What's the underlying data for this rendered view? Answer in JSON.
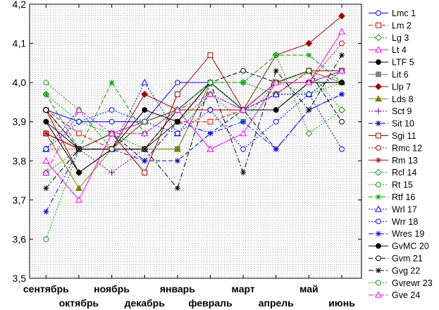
{
  "chart_data": {
    "type": "line",
    "categories": [
      "сентябрь",
      "октябрь",
      "ноябрь",
      "декабрь",
      "январь",
      "февраль",
      "март",
      "апрель",
      "май",
      "июнь"
    ],
    "ylim": [
      3.5,
      4.2
    ],
    "yticks": [
      "3,5",
      "3,6",
      "3,7",
      "3,8",
      "3,9",
      "4,0",
      "4,1",
      "4,2"
    ],
    "grid": true,
    "legend_position": "right",
    "series": [
      {
        "name": "Lmc 1",
        "color": "#0000ff",
        "dash": "solid",
        "marker": "circle-open",
        "values": [
          3.93,
          3.9,
          3.9,
          3.9,
          4.0,
          4.0,
          3.93,
          4.0,
          4.0,
          4.03
        ]
      },
      {
        "name": "Lm 2",
        "color": "#ff0000",
        "dash": "dash",
        "marker": "square-open",
        "values": [
          3.93,
          3.87,
          3.83,
          3.83,
          3.9,
          3.9,
          3.93,
          3.97,
          4.03,
          4.03
        ]
      },
      {
        "name": "Lg 3",
        "color": "#00a000",
        "dash": "dot",
        "marker": "diamond-open",
        "values": [
          3.77,
          3.83,
          3.87,
          3.9,
          3.93,
          4.0,
          4.0,
          3.97,
          3.97,
          4.0
        ]
      },
      {
        "name": "Lt 4",
        "color": "#ff00ff",
        "dash": "solid",
        "marker": "triangle-open",
        "values": [
          3.8,
          3.7,
          3.87,
          3.9,
          3.93,
          3.83,
          3.87,
          4.0,
          4.0,
          4.13
        ]
      },
      {
        "name": "LTF 5",
        "color": "#000000",
        "dash": "solid",
        "marker": "circle-filled",
        "values": [
          3.9,
          3.83,
          3.83,
          3.83,
          3.9,
          4.0,
          3.93,
          3.93,
          4.0,
          4.0
        ]
      },
      {
        "name": "Lit 6",
        "color": "#808080",
        "dash": "solid",
        "marker": "square-filled",
        "values": [
          3.93,
          3.83,
          3.83,
          3.83,
          3.83,
          4.0,
          3.93,
          4.0,
          4.0,
          4.03
        ]
      },
      {
        "name": "Llp 7",
        "color": "#a00000",
        "dash": "solid",
        "marker": "diamond-filled",
        "values": [
          3.93,
          3.77,
          3.83,
          3.97,
          3.93,
          3.93,
          3.93,
          4.07,
          4.1,
          4.17
        ]
      },
      {
        "name": "Lds 8",
        "color": "#808000",
        "dash": "solid",
        "marker": "triangle-filled",
        "values": [
          3.87,
          3.73,
          3.83,
          3.83,
          3.83,
          4.0,
          3.93,
          4.0,
          4.03,
          4.0
        ]
      },
      {
        "name": "Sct 9",
        "color": "#800080",
        "dash": "dot",
        "marker": "plus",
        "values": [
          3.87,
          3.83,
          3.77,
          3.83,
          3.93,
          4.0,
          3.93,
          3.97,
          4.03,
          4.03
        ]
      },
      {
        "name": "Sit 10",
        "color": "#000080",
        "dash": "dash",
        "marker": "asterisk",
        "values": [
          3.87,
          3.83,
          3.87,
          3.8,
          3.8,
          3.87,
          3.93,
          3.83,
          3.93,
          3.97
        ]
      },
      {
        "name": "Sgi 11",
        "color": "#a00000",
        "dash": "solid",
        "marker": "square-open",
        "values": [
          3.87,
          3.83,
          3.87,
          3.77,
          3.97,
          4.07,
          3.93,
          4.0,
          4.03,
          4.03
        ]
      },
      {
        "name": "Rmc 12",
        "color": "#a00000",
        "dash": "dot",
        "marker": "circle-open",
        "values": [
          3.83,
          3.83,
          3.83,
          3.83,
          3.93,
          3.93,
          3.93,
          4.0,
          4.0,
          4.1
        ]
      },
      {
        "name": "Rm 13",
        "color": "#b00000",
        "dash": "solid",
        "marker": "asterisk",
        "values": [
          3.87,
          3.83,
          3.83,
          3.9,
          3.93,
          3.93,
          3.93,
          4.0,
          4.03,
          4.03
        ]
      },
      {
        "name": "Rcl 14",
        "color": "#00a000",
        "dash": "dot",
        "marker": "diamond-open",
        "values": [
          3.97,
          3.9,
          3.87,
          3.87,
          3.93,
          4.0,
          3.93,
          4.07,
          3.87,
          3.93
        ]
      },
      {
        "name": "Rt 15",
        "color": "#00a000",
        "dash": "dot",
        "marker": "circle-open",
        "values": [
          3.6,
          3.83,
          3.87,
          3.83,
          3.9,
          3.97,
          3.9,
          4.0,
          3.97,
          4.03
        ]
      },
      {
        "name": "Rtf 16",
        "color": "#00a000",
        "dash": "dash",
        "marker": "asterisk",
        "values": [
          3.97,
          3.83,
          4.0,
          3.87,
          3.93,
          4.0,
          4.0,
          4.07,
          4.07,
          4.0
        ]
      },
      {
        "name": "Wrl 17",
        "color": "#0000ff",
        "dash": "dot",
        "marker": "triangle-open",
        "values": [
          3.83,
          3.93,
          3.83,
          4.0,
          3.87,
          3.97,
          3.93,
          3.97,
          3.97,
          4.03
        ]
      },
      {
        "name": "Wrr 18",
        "color": "#0000ff",
        "dash": "dot",
        "marker": "circle-open",
        "values": [
          3.83,
          3.9,
          3.93,
          3.9,
          3.87,
          3.93,
          3.83,
          3.9,
          3.97,
          3.83
        ]
      },
      {
        "name": "Wres 19",
        "color": "#0000ff",
        "dash": "dashdot",
        "marker": "asterisk",
        "values": [
          3.67,
          3.83,
          3.83,
          3.8,
          3.9,
          3.87,
          3.9,
          3.83,
          3.93,
          3.97
        ]
      },
      {
        "name": "GvMC 20",
        "color": "#000000",
        "dash": "solid",
        "marker": "circle-filled",
        "values": [
          3.9,
          3.77,
          3.83,
          3.93,
          3.9,
          4.0,
          3.93,
          3.93,
          4.0,
          4.0
        ]
      },
      {
        "name": "Gvm 21",
        "color": "#000000",
        "dash": "dash",
        "marker": "circle-open",
        "values": [
          3.93,
          3.83,
          3.83,
          3.83,
          3.93,
          4.0,
          4.03,
          4.0,
          4.03,
          3.9
        ]
      },
      {
        "name": "Gvg 22",
        "color": "#000000",
        "dash": "dashdot",
        "marker": "asterisk",
        "values": [
          3.73,
          3.83,
          3.83,
          3.83,
          3.73,
          4.0,
          3.77,
          4.03,
          3.93,
          4.07
        ]
      },
      {
        "name": "Gvrewr 23",
        "color": "#00a000",
        "dash": "dot",
        "marker": "circle-open",
        "values": [
          4.0,
          3.93,
          3.83,
          3.9,
          3.93,
          4.0,
          3.93,
          4.0,
          4.03,
          3.93
        ]
      },
      {
        "name": "Gve 24",
        "color": "#ff00ff",
        "dash": "dashdot",
        "marker": "triangle-open",
        "values": [
          3.77,
          3.93,
          3.87,
          3.87,
          3.93,
          3.97,
          3.93,
          4.0,
          4.0,
          4.03
        ]
      }
    ]
  }
}
